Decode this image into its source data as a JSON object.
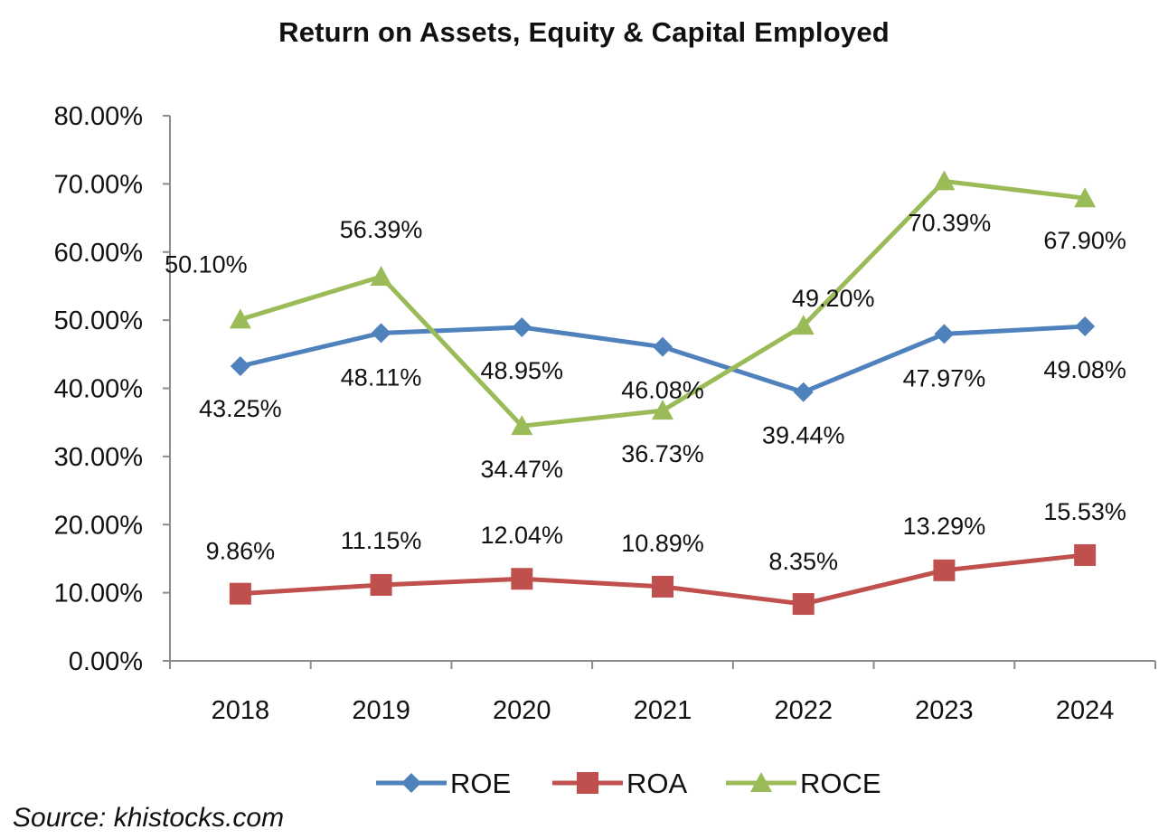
{
  "source": "Source: khistocks.com",
  "chart_data": {
    "type": "line",
    "title": "Return on Assets, Equity & Capital Employed",
    "xlabel": "",
    "ylabel": "",
    "categories": [
      "2018",
      "2019",
      "2020",
      "2021",
      "2022",
      "2023",
      "2024"
    ],
    "ylim": [
      0,
      80
    ],
    "yticks": [
      "0.00%",
      "10.00%",
      "20.00%",
      "30.00%",
      "40.00%",
      "50.00%",
      "60.00%",
      "70.00%",
      "80.00%"
    ],
    "grid": false,
    "legend_position": "bottom",
    "series": [
      {
        "name": "ROE",
        "color": "#4F81BD",
        "marker": "diamond",
        "values": [
          43.25,
          48.11,
          48.95,
          46.08,
          39.44,
          47.97,
          49.08
        ],
        "labels": [
          "43.25%",
          "48.11%",
          "48.95%",
          "46.08%",
          "39.44%",
          "47.97%",
          "49.08%"
        ]
      },
      {
        "name": "ROA",
        "color": "#C0504D",
        "marker": "square",
        "values": [
          9.86,
          11.15,
          12.04,
          10.89,
          8.35,
          13.29,
          15.53
        ],
        "labels": [
          "9.86%",
          "11.15%",
          "12.04%",
          "10.89%",
          "8.35%",
          "13.29%",
          "15.53%"
        ]
      },
      {
        "name": "ROCE",
        "color": "#9BBB59",
        "marker": "triangle",
        "values": [
          50.1,
          56.39,
          34.47,
          36.73,
          49.2,
          70.39,
          67.9
        ],
        "labels": [
          "50.10%",
          "56.39%",
          "34.47%",
          "36.73%",
          "49.20%",
          "70.39%",
          "67.90%"
        ]
      }
    ]
  }
}
